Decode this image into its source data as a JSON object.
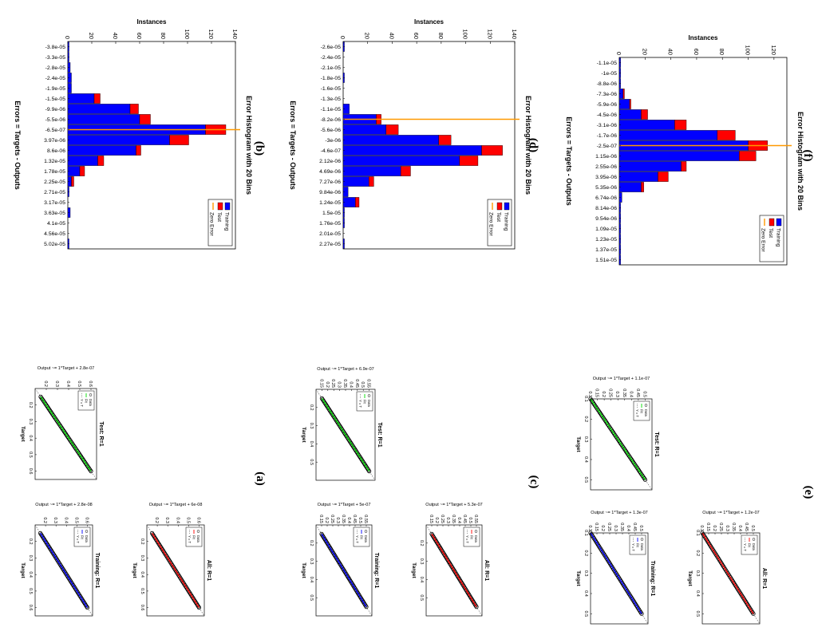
{
  "panels": {
    "a": "(a)",
    "b": "(b)",
    "c": "(c)",
    "d": "(d)",
    "e": "(e)",
    "f": "(f)"
  },
  "colors": {
    "training": "#0000ff",
    "test": "#ff0000",
    "zero_error": "#ff9900",
    "fit_training": "#0000ff",
    "fit_test": "#00dd00",
    "fit_all": "#ff0000",
    "data_marker": "#000000"
  },
  "chart_data": [
    {
      "id": "a-training",
      "panel": "a",
      "type": "scatter",
      "title": "Training: R=1",
      "xlabel": "Target",
      "ylabel": "Output ~= 1*Target + 2.8e-08",
      "xlim": [
        0.1,
        0.65
      ],
      "ylim": [
        0.1,
        0.65
      ],
      "xticks": [
        "0.2",
        "0.3",
        "0.4",
        "0.5",
        "0.6"
      ],
      "yticks": [
        "0.2",
        "0.3",
        "0.4",
        "0.5",
        "0.6"
      ],
      "legend": [
        "Data",
        "Fit",
        "Y = T"
      ],
      "fit_color": "#0000ff",
      "x": [
        0.15,
        0.2,
        0.25,
        0.3,
        0.35,
        0.4,
        0.45,
        0.5,
        0.55,
        0.6
      ],
      "y": [
        0.15,
        0.2,
        0.25,
        0.3,
        0.35,
        0.4,
        0.45,
        0.5,
        0.55,
        0.6
      ]
    },
    {
      "id": "a-test",
      "panel": "a",
      "type": "scatter",
      "title": "Test: R=1",
      "xlabel": "Target",
      "ylabel": "Output ~= 1*Target + 2.8e-07",
      "xlim": [
        0.1,
        0.65
      ],
      "ylim": [
        0.1,
        0.65
      ],
      "xticks": [
        "0.2",
        "0.3",
        "0.4",
        "0.5",
        "0.6"
      ],
      "yticks": [
        "0.2",
        "0.3",
        "0.4",
        "0.5",
        "0.6"
      ],
      "legend": [
        "Data",
        "Fit",
        "Y = T"
      ],
      "fit_color": "#00dd00",
      "x": [
        0.15,
        0.2,
        0.25,
        0.3,
        0.35,
        0.4,
        0.45,
        0.5,
        0.55,
        0.6
      ],
      "y": [
        0.15,
        0.2,
        0.25,
        0.3,
        0.35,
        0.4,
        0.45,
        0.5,
        0.55,
        0.6
      ]
    },
    {
      "id": "a-all",
      "panel": "a",
      "type": "scatter",
      "title": "All: R=1",
      "xlabel": "Target",
      "ylabel": "Output ~= 1*Target + 6e-08",
      "xlim": [
        0.1,
        0.65
      ],
      "ylim": [
        0.1,
        0.65
      ],
      "xticks": [
        "0.2",
        "0.3",
        "0.4",
        "0.5",
        "0.6"
      ],
      "yticks": [
        "0.2",
        "0.3",
        "0.4",
        "0.5",
        "0.6"
      ],
      "legend": [
        "Data",
        "Fit",
        "Y = T"
      ],
      "fit_color": "#ff0000",
      "x": [
        0.15,
        0.2,
        0.25,
        0.3,
        0.35,
        0.4,
        0.45,
        0.5,
        0.55,
        0.6
      ],
      "y": [
        0.15,
        0.2,
        0.25,
        0.3,
        0.35,
        0.4,
        0.45,
        0.5,
        0.55,
        0.6
      ]
    },
    {
      "id": "c-training",
      "panel": "c",
      "type": "scatter",
      "title": "Training: R=1",
      "xlabel": "Target",
      "ylabel": "Output ~= 1*Target + 5e-07",
      "xlim": [
        0.1,
        0.6
      ],
      "ylim": [
        0.1,
        0.6
      ],
      "xticks": [
        "0.2",
        "0.3",
        "0.4",
        "0.5"
      ],
      "yticks": [
        "0.15",
        "0.2",
        "0.25",
        "0.3",
        "0.35",
        "0.4",
        "0.45",
        "0.5",
        "0.55"
      ],
      "legend": [
        "Data",
        "Fit",
        "Y = T"
      ],
      "fit_color": "#0000ff",
      "x": [
        0.15,
        0.2,
        0.25,
        0.3,
        0.35,
        0.4,
        0.45,
        0.5,
        0.55
      ],
      "y": [
        0.15,
        0.2,
        0.25,
        0.3,
        0.35,
        0.4,
        0.45,
        0.5,
        0.55
      ]
    },
    {
      "id": "c-test",
      "panel": "c",
      "type": "scatter",
      "title": "Test: R=1",
      "xlabel": "Target",
      "ylabel": "Output ~= 1*Target + 6.9e-07",
      "xlim": [
        0.1,
        0.6
      ],
      "ylim": [
        0.1,
        0.6
      ],
      "xticks": [
        "0.2",
        "0.3",
        "0.4",
        "0.5"
      ],
      "yticks": [
        "0.15",
        "0.2",
        "0.25",
        "0.3",
        "0.35",
        "0.4",
        "0.45",
        "0.5",
        "0.55"
      ],
      "legend": [
        "Data",
        "Fit",
        "Y = T"
      ],
      "fit_color": "#00dd00",
      "x": [
        0.15,
        0.2,
        0.25,
        0.3,
        0.35,
        0.4,
        0.45,
        0.5,
        0.55
      ],
      "y": [
        0.15,
        0.2,
        0.25,
        0.3,
        0.35,
        0.4,
        0.45,
        0.5,
        0.55
      ]
    },
    {
      "id": "c-all",
      "panel": "c",
      "type": "scatter",
      "title": "All: R=1",
      "xlabel": "Target",
      "ylabel": "Output ~= 1*Target + 5.3e-07",
      "xlim": [
        0.1,
        0.6
      ],
      "ylim": [
        0.1,
        0.6
      ],
      "xticks": [
        "0.2",
        "0.3",
        "0.4",
        "0.5"
      ],
      "yticks": [
        "0.15",
        "0.2",
        "0.25",
        "0.3",
        "0.35",
        "0.4",
        "0.45",
        "0.5",
        "0.55"
      ],
      "legend": [
        "Data",
        "Fit",
        "Y = T"
      ],
      "fit_color": "#ff0000",
      "x": [
        0.15,
        0.2,
        0.25,
        0.3,
        0.35,
        0.4,
        0.45,
        0.5,
        0.55
      ],
      "y": [
        0.15,
        0.2,
        0.25,
        0.3,
        0.35,
        0.4,
        0.45,
        0.5,
        0.55
      ]
    },
    {
      "id": "e-training",
      "panel": "e",
      "type": "scatter",
      "title": "Training: R=1",
      "xlabel": "Target",
      "ylabel": "Output ~= 1*Target + 1.3e-07",
      "xlim": [
        0.1,
        0.55
      ],
      "ylim": [
        0.1,
        0.55
      ],
      "xticks": [
        "0.1",
        "0.2",
        "0.3",
        "0.4",
        "0.5"
      ],
      "yticks": [
        "0.1",
        "0.15",
        "0.2",
        "0.25",
        "0.3",
        "0.35",
        "0.4",
        "0.45",
        "0.5"
      ],
      "legend": [
        "Data",
        "Fit",
        "Y = T"
      ],
      "fit_color": "#0000ff",
      "x": [
        0.1,
        0.15,
        0.2,
        0.25,
        0.3,
        0.35,
        0.4,
        0.45,
        0.5
      ],
      "y": [
        0.1,
        0.15,
        0.2,
        0.25,
        0.3,
        0.35,
        0.4,
        0.45,
        0.5
      ]
    },
    {
      "id": "e-test",
      "panel": "e",
      "type": "scatter",
      "title": "Test: R=1",
      "xlabel": "Target",
      "ylabel": "Output ~= 1*Target + 1.1e-07",
      "xlim": [
        0.1,
        0.55
      ],
      "ylim": [
        0.1,
        0.55
      ],
      "xticks": [
        "0.1",
        "0.2",
        "0.3",
        "0.4",
        "0.5"
      ],
      "yticks": [
        "0.1",
        "0.15",
        "0.2",
        "0.25",
        "0.3",
        "0.35",
        "0.4",
        "0.45",
        "0.5"
      ],
      "legend": [
        "Data",
        "Fit",
        "Y = T"
      ],
      "fit_color": "#00dd00",
      "x": [
        0.1,
        0.15,
        0.2,
        0.25,
        0.3,
        0.35,
        0.4,
        0.45,
        0.5
      ],
      "y": [
        0.1,
        0.15,
        0.2,
        0.25,
        0.3,
        0.35,
        0.4,
        0.45,
        0.5
      ]
    },
    {
      "id": "e-all",
      "panel": "e",
      "type": "scatter",
      "title": "All: R=1",
      "xlabel": "Target",
      "ylabel": "Output ~= 1*Target + 1.2e-07",
      "xlim": [
        0.1,
        0.55
      ],
      "ylim": [
        0.1,
        0.55
      ],
      "xticks": [
        "0.1",
        "0.2",
        "0.3",
        "0.4",
        "0.5"
      ],
      "yticks": [
        "0.1",
        "0.15",
        "0.2",
        "0.25",
        "0.3",
        "0.35",
        "0.4",
        "0.45",
        "0.5"
      ],
      "legend": [
        "Data",
        "Fit",
        "Y = T"
      ],
      "fit_color": "#ff0000",
      "x": [
        0.1,
        0.15,
        0.2,
        0.25,
        0.3,
        0.35,
        0.4,
        0.45,
        0.5
      ],
      "y": [
        0.1,
        0.15,
        0.2,
        0.25,
        0.3,
        0.35,
        0.4,
        0.45,
        0.5
      ]
    },
    {
      "id": "b-hist",
      "panel": "b",
      "type": "bar",
      "title": "Error Histogram with 20 Bins",
      "xlabel": "Errors = Targets - Outputs",
      "ylabel": "Instances",
      "ylim": [
        0,
        140
      ],
      "yticks": [
        "0",
        "20",
        "40",
        "60",
        "80",
        "100",
        "120",
        "140"
      ],
      "legend": [
        "Training",
        "Test",
        "Zero Error"
      ],
      "zero_bin": 9,
      "categories": [
        "-3.8e-05",
        "-3.3e-05",
        "-2.8e-05",
        "-2.4e-05",
        "-1.9e-05",
        "-1.5e-05",
        "-9.9e-06",
        "-5.5e-06",
        "-6.5e-07",
        "3.97e-06",
        "8.6e-06",
        "1.32e-05",
        "1.78e-05",
        "2.25e-05",
        "2.71e-05",
        "3.17e-05",
        "3.63e-05",
        "4.1e-05",
        "4.56e-05",
        "5.02e-05"
      ],
      "series": [
        {
          "name": "Training",
          "values": [
            1,
            1,
            2,
            3,
            3,
            22,
            52,
            60,
            115,
            85,
            57,
            25,
            10,
            3,
            1,
            0,
            2,
            0,
            0,
            1
          ]
        },
        {
          "name": "Test",
          "values": [
            0,
            0,
            0,
            0,
            0,
            5,
            7,
            9,
            17,
            16,
            4,
            5,
            4,
            2,
            0,
            0,
            0,
            0,
            0,
            0
          ]
        }
      ]
    },
    {
      "id": "d-hist",
      "panel": "d",
      "type": "bar",
      "title": "Error Histogram with 20 Bins",
      "xlabel": "Errors = Targets - Outputs",
      "ylabel": "Instances",
      "ylim": [
        0,
        140
      ],
      "yticks": [
        "0",
        "20",
        "40",
        "60",
        "80",
        "100",
        "120",
        "140"
      ],
      "legend": [
        "Training",
        "Test",
        "Zero Error"
      ],
      "zero_bin": 8,
      "categories": [
        "-2.6e-05",
        "-2.4e-05",
        "-2.1e-05",
        "-1.8e-05",
        "-1.6e-05",
        "-1.3e-05",
        "-1.1e-05",
        "-8.2e-06",
        "-5.6e-06",
        "-3e-06",
        "-4.6e-07",
        "2.12e-06",
        "4.69e-06",
        "7.27e-06",
        "9.84e-06",
        "1.24e-05",
        "1.5e-05",
        "1.76e-05",
        "2.01e-05",
        "2.27e-05"
      ],
      "series": [
        {
          "name": "Training",
          "values": [
            1,
            0,
            0,
            1,
            0,
            0,
            5,
            27,
            35,
            78,
            113,
            95,
            47,
            21,
            4,
            10,
            1,
            1,
            0,
            1
          ]
        },
        {
          "name": "Test",
          "values": [
            0,
            0,
            0,
            0,
            0,
            0,
            0,
            4,
            10,
            10,
            17,
            15,
            8,
            4,
            0,
            3,
            0,
            0,
            0,
            0
          ]
        }
      ]
    },
    {
      "id": "f-hist",
      "panel": "f",
      "type": "bar",
      "title": "Error Histogram with 20 Bins",
      "xlabel": "Errors = Targets - Outputs",
      "ylabel": "Instances",
      "ylim": [
        0,
        130
      ],
      "yticks": [
        "0",
        "20",
        "40",
        "60",
        "80",
        "100",
        "120"
      ],
      "legend": [
        "Training",
        "Test",
        "Zero Error"
      ],
      "zero_bin": 9,
      "categories": [
        "-1.1e-05",
        "-1e-05",
        "-8.8e-06",
        "-7.3e-06",
        "-5.9e-06",
        "-4.5e-06",
        "-3.1e-06",
        "-1.7e-06",
        "-2.5e-07",
        "1.15e-06",
        "2.55e-06",
        "3.95e-06",
        "5.35e-06",
        "6.74e-06",
        "8.14e-06",
        "9.54e-06",
        "1.09e-05",
        "1.23e-05",
        "1.37e-05",
        "1.51e-05"
      ],
      "series": [
        {
          "name": "Training",
          "values": [
            1,
            1,
            1,
            3,
            8,
            17,
            43,
            76,
            100,
            93,
            48,
            30,
            17,
            2,
            1,
            1,
            1,
            1,
            1,
            1
          ]
        },
        {
          "name": "Test",
          "values": [
            0,
            0,
            0,
            1,
            1,
            5,
            9,
            14,
            15,
            13,
            4,
            8,
            2,
            0,
            0,
            0,
            0,
            0,
            0,
            0
          ]
        }
      ]
    }
  ]
}
